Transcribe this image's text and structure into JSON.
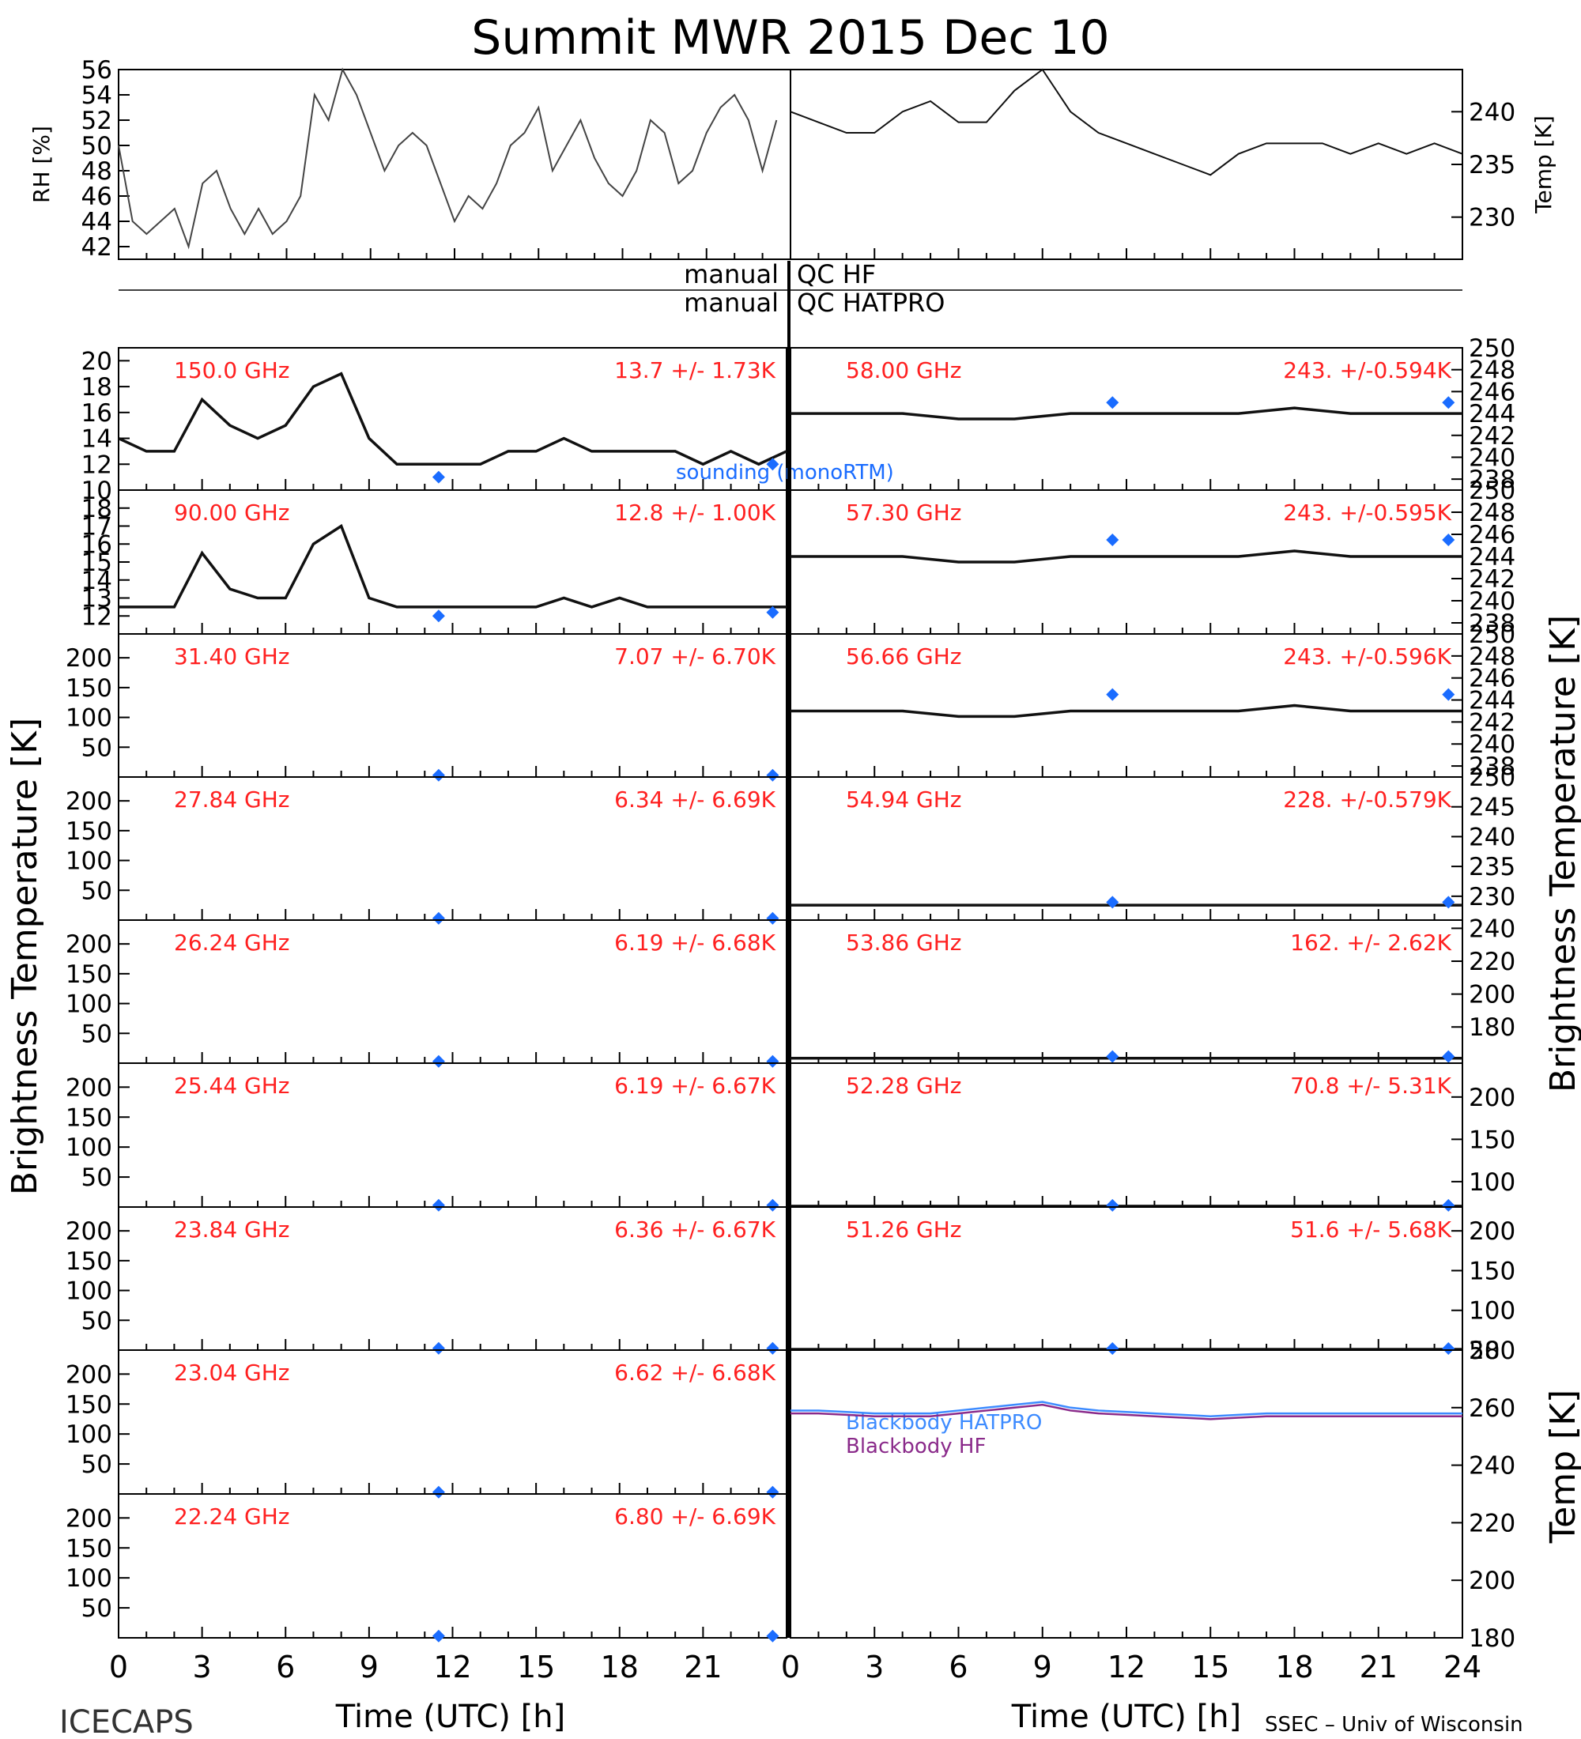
{
  "page": {
    "title": "Summit MWR 2015 Dec 10"
  },
  "footer": {
    "left": "ICECAPS",
    "right": "SSEC – Univ of Wisconsin"
  },
  "xaxis": {
    "label": "Time (UTC) [h]",
    "ticks_left": [
      "0",
      "3",
      "6",
      "9",
      "12",
      "15",
      "18",
      "21"
    ],
    "ticks_right": [
      "0",
      "3",
      "6",
      "9",
      "12",
      "15",
      "18",
      "21",
      "24"
    ]
  },
  "side_labels": {
    "left_big": "Brightness Temperature [K]",
    "right_big": "Brightness Temperature [K]",
    "right_bottom": "Temp [K]"
  },
  "qc": {
    "hf_left": "manual",
    "hf_right": "QC HF",
    "hatpro_left": "manual",
    "hatpro_right": "QC HATPRO"
  },
  "colors": {
    "label_red": "#ff2020",
    "marker_blue": "#1a6cff",
    "bb_hatpro": "#3d8bff",
    "bb_hf": "#8a2a8a"
  },
  "chart_data": [
    {
      "type": "line",
      "title": "",
      "ylabel": "RH [%]",
      "ylim": [
        41,
        56
      ],
      "yticks": [
        "42",
        "44",
        "46",
        "48",
        "50",
        "52",
        "54",
        "56"
      ],
      "x": [
        0,
        0.5,
        1,
        1.5,
        2,
        2.5,
        3,
        3.5,
        4,
        4.5,
        5,
        5.5,
        6,
        6.5,
        7,
        7.5,
        8,
        8.5,
        9,
        9.5,
        10,
        10.5,
        11,
        11.5,
        12,
        12.5,
        13,
        13.5,
        14,
        14.5,
        15,
        15.5,
        16,
        16.5,
        17,
        17.5,
        18,
        18.5,
        19,
        19.5,
        20,
        20.5,
        21,
        21.5,
        22,
        22.5,
        23,
        23.5
      ],
      "y": [
        50,
        44,
        43,
        44,
        45,
        42,
        47,
        48,
        45,
        43,
        45,
        43,
        44,
        46,
        54,
        52,
        56,
        54,
        51,
        48,
        50,
        51,
        50,
        47,
        44,
        46,
        45,
        47,
        50,
        51,
        53,
        48,
        50,
        52,
        49,
        47,
        46,
        48,
        52,
        51,
        47,
        48,
        51,
        53,
        54,
        52,
        48,
        52
      ]
    },
    {
      "type": "line",
      "title": "",
      "ylabel": "Temp [K]",
      "ylim": [
        226,
        244
      ],
      "yticks": [
        "230",
        "235",
        "240"
      ],
      "x": [
        0,
        1,
        2,
        3,
        4,
        5,
        6,
        7,
        8,
        9,
        10,
        11,
        12,
        13,
        14,
        15,
        16,
        17,
        18,
        19,
        20,
        21,
        22,
        23,
        24
      ],
      "y": [
        240,
        239,
        238,
        238,
        240,
        241,
        239,
        239,
        242,
        244,
        240,
        238,
        237,
        236,
        235,
        234,
        236,
        237,
        237,
        237,
        236,
        237,
        236,
        237,
        236
      ]
    },
    {
      "type": "scatter",
      "label": "150.0 GHz",
      "stats": "13.7 +/- 1.73K",
      "ylim": [
        10,
        21
      ],
      "yticks": [
        "10",
        "12",
        "14",
        "16",
        "18",
        "20"
      ],
      "x": [
        0,
        1,
        2,
        3,
        4,
        5,
        6,
        7,
        8,
        9,
        10,
        11,
        12,
        13,
        14,
        15,
        16,
        17,
        18,
        19,
        20,
        21,
        22,
        23,
        24
      ],
      "y": [
        14,
        13,
        13,
        17,
        15,
        14,
        15,
        18,
        19,
        14,
        12,
        12,
        12,
        12,
        13,
        13,
        14,
        13,
        13,
        13,
        13,
        12,
        13,
        12,
        13
      ],
      "marker_x": [
        11.5,
        23.5
      ],
      "marker_y": [
        11,
        12
      ],
      "annotation": "sounding (monoRTM)"
    },
    {
      "type": "scatter",
      "label": "90.00 GHz",
      "stats": "12.8 +/- 1.00K",
      "ylim": [
        11,
        19
      ],
      "yticks": [
        "12",
        "13",
        "14",
        "15",
        "16",
        "17",
        "18"
      ],
      "x": [
        0,
        1,
        2,
        3,
        4,
        5,
        6,
        7,
        8,
        9,
        10,
        11,
        12,
        13,
        14,
        15,
        16,
        17,
        18,
        19,
        20,
        21,
        22,
        23,
        24
      ],
      "y": [
        12.5,
        12.5,
        12.5,
        15.5,
        13.5,
        13,
        13,
        16,
        17,
        13,
        12.5,
        12.5,
        12.5,
        12.5,
        12.5,
        12.5,
        13,
        12.5,
        13,
        12.5,
        12.5,
        12.5,
        12.5,
        12.5,
        12.5
      ],
      "marker_x": [
        11.5,
        23.5
      ],
      "marker_y": [
        12,
        12.2
      ]
    },
    {
      "type": "scatter",
      "label": "31.40 GHz",
      "stats": "7.07 +/- 6.70K",
      "ylim": [
        0,
        240
      ],
      "yticks": [
        "50",
        "100",
        "150",
        "200"
      ],
      "x": [],
      "y": [],
      "marker_x": [
        11.5,
        23.5
      ],
      "marker_y": [
        3,
        3
      ]
    },
    {
      "type": "scatter",
      "label": "27.84 GHz",
      "stats": "6.34 +/- 6.69K",
      "ylim": [
        0,
        240
      ],
      "yticks": [
        "50",
        "100",
        "150",
        "200"
      ],
      "x": [],
      "y": [],
      "marker_x": [
        11.5,
        23.5
      ],
      "marker_y": [
        3,
        3
      ]
    },
    {
      "type": "scatter",
      "label": "26.24 GHz",
      "stats": "6.19 +/- 6.68K",
      "ylim": [
        0,
        240
      ],
      "yticks": [
        "50",
        "100",
        "150",
        "200"
      ],
      "x": [],
      "y": [],
      "marker_x": [
        11.5,
        23.5
      ],
      "marker_y": [
        3,
        3
      ]
    },
    {
      "type": "scatter",
      "label": "25.44 GHz",
      "stats": "6.19 +/- 6.67K",
      "ylim": [
        0,
        240
      ],
      "yticks": [
        "50",
        "100",
        "150",
        "200"
      ],
      "x": [],
      "y": [],
      "marker_x": [
        11.5,
        23.5
      ],
      "marker_y": [
        3,
        3
      ]
    },
    {
      "type": "scatter",
      "label": "23.84 GHz",
      "stats": "6.36 +/- 6.67K",
      "ylim": [
        0,
        240
      ],
      "yticks": [
        "50",
        "100",
        "150",
        "200"
      ],
      "x": [],
      "y": [],
      "marker_x": [
        11.5,
        23.5
      ],
      "marker_y": [
        3,
        3
      ]
    },
    {
      "type": "scatter",
      "label": "23.04 GHz",
      "stats": "6.62 +/- 6.68K",
      "ylim": [
        0,
        240
      ],
      "yticks": [
        "50",
        "100",
        "150",
        "200"
      ],
      "x": [],
      "y": [],
      "marker_x": [
        11.5,
        23.5
      ],
      "marker_y": [
        3,
        3
      ]
    },
    {
      "type": "scatter",
      "label": "22.24 GHz",
      "stats": "6.80 +/- 6.69K",
      "ylim": [
        0,
        240
      ],
      "yticks": [
        "50",
        "100",
        "150",
        "200"
      ],
      "x": [],
      "y": [],
      "marker_x": [
        11.5,
        23.5
      ],
      "marker_y": [
        3,
        3
      ]
    },
    {
      "type": "scatter",
      "label": "58.00 GHz",
      "stats": "243. +/-0.594K",
      "ylim": [
        237,
        250
      ],
      "yticks": [
        "238",
        "240",
        "242",
        "244",
        "246",
        "248",
        "250"
      ],
      "x": [
        0,
        2,
        4,
        6,
        8,
        10,
        12,
        14,
        16,
        18,
        20,
        22,
        24
      ],
      "y": [
        244,
        244,
        244,
        243.5,
        243.5,
        244,
        244,
        244,
        244,
        244.5,
        244,
        244,
        244
      ],
      "marker_x": [
        11.5,
        23.5
      ],
      "marker_y": [
        245,
        245
      ]
    },
    {
      "type": "scatter",
      "label": "57.30 GHz",
      "stats": "243. +/-0.595K",
      "ylim": [
        237,
        250
      ],
      "yticks": [
        "238",
        "240",
        "242",
        "244",
        "246",
        "248",
        "250"
      ],
      "x": [
        0,
        2,
        4,
        6,
        8,
        10,
        12,
        14,
        16,
        18,
        20,
        22,
        24
      ],
      "y": [
        244,
        244,
        244,
        243.5,
        243.5,
        244,
        244,
        244,
        244,
        244.5,
        244,
        244,
        244
      ],
      "marker_x": [
        11.5,
        23.5
      ],
      "marker_y": [
        245.5,
        245.5
      ]
    },
    {
      "type": "scatter",
      "label": "56.66 GHz",
      "stats": "243. +/-0.596K",
      "ylim": [
        237,
        250
      ],
      "yticks": [
        "238",
        "240",
        "242",
        "244",
        "246",
        "248",
        "250"
      ],
      "x": [
        0,
        2,
        4,
        6,
        8,
        10,
        12,
        14,
        16,
        18,
        20,
        22,
        24
      ],
      "y": [
        243,
        243,
        243,
        242.5,
        242.5,
        243,
        243,
        243,
        243,
        243.5,
        243,
        243,
        243
      ],
      "marker_x": [
        11.5,
        23.5
      ],
      "marker_y": [
        244.5,
        244.5
      ]
    },
    {
      "type": "scatter",
      "label": "54.94 GHz",
      "stats": "228. +/-0.579K",
      "ylim": [
        226,
        250
      ],
      "yticks": [
        "230",
        "235",
        "240",
        "245",
        "250"
      ],
      "x": [
        0,
        4,
        8,
        12,
        16,
        20,
        24
      ],
      "y": [
        228.5,
        228.5,
        228.5,
        228.5,
        228.5,
        228.5,
        228.5
      ],
      "marker_x": [
        11.5,
        23.5
      ],
      "marker_y": [
        229,
        229
      ]
    },
    {
      "type": "scatter",
      "label": "53.86 GHz",
      "stats": "162. +/- 2.62K",
      "ylim": [
        158,
        245
      ],
      "yticks": [
        "180",
        "200",
        "220",
        "240"
      ],
      "x": [
        0,
        4,
        8,
        12,
        16,
        20,
        24
      ],
      "y": [
        161,
        161,
        161,
        161,
        161,
        161,
        161
      ],
      "marker_x": [
        11.5,
        23.5
      ],
      "marker_y": [
        162,
        162
      ]
    },
    {
      "type": "scatter",
      "label": "52.28 GHz",
      "stats": "70.8 +/- 5.31K",
      "ylim": [
        70,
        240
      ],
      "yticks": [
        "100",
        "150",
        "200"
      ],
      "x": [
        0,
        4,
        8,
        12,
        16,
        20,
        24
      ],
      "y": [
        71,
        71,
        71,
        71,
        71,
        71,
        71
      ],
      "marker_x": [
        11.5,
        23.5
      ],
      "marker_y": [
        72,
        72
      ]
    },
    {
      "type": "scatter",
      "label": "51.26 GHz",
      "stats": "51.6 +/- 5.68K",
      "ylim": [
        50,
        230
      ],
      "yticks": [
        "50",
        "100",
        "150",
        "200"
      ],
      "x": [
        0,
        4,
        8,
        12,
        16,
        20,
        24
      ],
      "y": [
        51,
        51,
        51,
        51,
        51,
        51,
        51
      ],
      "marker_x": [
        11.5,
        23.5
      ],
      "marker_y": [
        52,
        52
      ]
    },
    {
      "type": "line",
      "title": "",
      "ylabel": "Temp [K]",
      "ylim": [
        180,
        280
      ],
      "yticks": [
        "180",
        "200",
        "220",
        "240",
        "260",
        "280"
      ],
      "x": [
        0,
        1,
        2,
        3,
        4,
        5,
        6,
        7,
        8,
        9,
        10,
        11,
        12,
        13,
        14,
        15,
        16,
        17,
        18,
        19,
        20,
        21,
        22,
        23,
        24
      ],
      "series": [
        {
          "name": "Blackbody HATPRO",
          "values": [
            259,
            259,
            258.5,
            258,
            258,
            258,
            259,
            260,
            261,
            262,
            260,
            259,
            258.5,
            258,
            257.5,
            257,
            257.5,
            258,
            258,
            258,
            258,
            258,
            258,
            258,
            258
          ]
        },
        {
          "name": "Blackbody HF",
          "values": [
            258,
            258,
            257.5,
            257,
            257,
            257,
            258,
            259,
            260,
            261,
            259,
            258,
            257.5,
            257,
            256.5,
            256,
            256.5,
            257,
            257,
            257,
            257,
            257,
            257,
            257,
            257
          ]
        }
      ]
    }
  ]
}
